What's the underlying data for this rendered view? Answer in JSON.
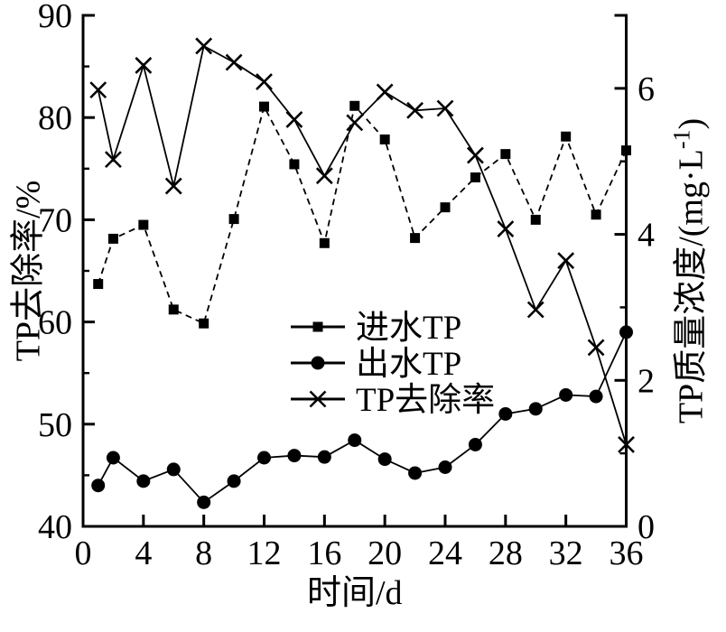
{
  "figure": {
    "background_color": "#ffffff",
    "ink_color": "#000000"
  },
  "chart_data": {
    "type": "line",
    "xlabel": "时间/d",
    "xlim": [
      0,
      36
    ],
    "x_ticks": [
      0,
      4,
      8,
      12,
      16,
      20,
      24,
      28,
      32,
      36
    ],
    "x": [
      1,
      2,
      4,
      6,
      8,
      10,
      12,
      14,
      16,
      18,
      20,
      22,
      24,
      26,
      28,
      30,
      32,
      34,
      36
    ],
    "left_axis": {
      "label": "TP去除率/%",
      "lim": [
        40,
        90
      ],
      "major_ticks": [
        40,
        50,
        60,
        70,
        80,
        90
      ],
      "minor_ticks": [
        45,
        55,
        65,
        75,
        85
      ]
    },
    "right_axis": {
      "label": "TP质量浓度/(mg·L⁻¹)",
      "lim": [
        0,
        7
      ],
      "major_ticks": [
        0,
        2,
        4,
        6
      ],
      "minor_ticks": [
        1,
        3,
        5,
        7
      ]
    },
    "series": [
      {
        "key": "influent-tp",
        "name": "进水TP",
        "axis": "right",
        "marker": "square",
        "line_style": "dashed",
        "values": [
          3.32,
          3.94,
          4.13,
          2.97,
          2.78,
          4.21,
          5.75,
          4.96,
          3.88,
          5.76,
          5.3,
          3.95,
          4.37,
          4.78,
          5.1,
          4.2,
          5.34,
          4.27,
          5.15
        ]
      },
      {
        "key": "effluent-tp",
        "name": "出水TP",
        "axis": "right",
        "marker": "circle",
        "line_style": "solid",
        "values": [
          0.56,
          0.94,
          0.62,
          0.78,
          0.33,
          0.62,
          0.94,
          0.97,
          0.95,
          1.18,
          0.92,
          0.73,
          0.81,
          1.12,
          1.54,
          1.61,
          1.8,
          1.78,
          2.66
        ]
      },
      {
        "key": "tp-removal-rate",
        "name": "TP去除率",
        "axis": "left",
        "marker": "x",
        "line_style": "solid",
        "values": [
          82.7,
          75.9,
          85.1,
          73.3,
          87.0,
          85.4,
          83.5,
          79.8,
          74.3,
          79.5,
          82.5,
          80.7,
          80.9,
          76.3,
          69.1,
          61.2,
          66.0,
          57.5,
          48.0
        ]
      }
    ],
    "legend": {
      "position": "inside-center-left",
      "entries": [
        "进水TP",
        "出水TP",
        "TP去除率"
      ]
    },
    "grid": false
  }
}
